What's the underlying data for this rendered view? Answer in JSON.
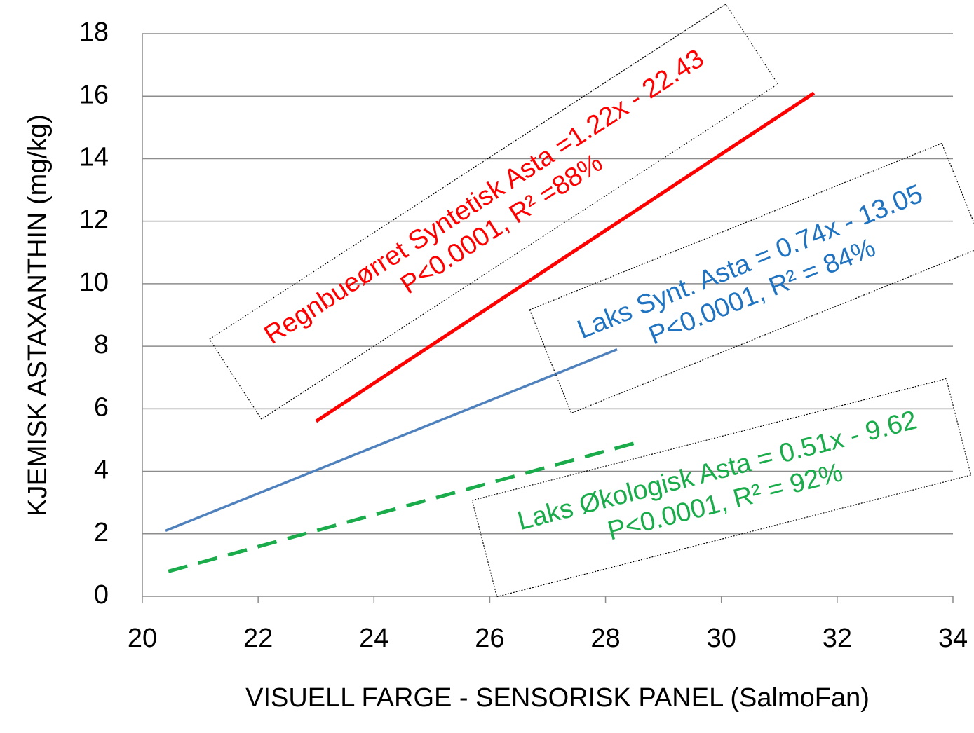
{
  "chart_data": {
    "type": "line",
    "xlabel": "VISUELL FARGE  - SENSORISK PANEL (SalmoFan)",
    "ylabel": "KJEMISK ASTAXANTHIN (mg/kg)",
    "xlim": [
      20,
      34
    ],
    "xticks": [
      20,
      22,
      24,
      26,
      28,
      30,
      32,
      34
    ],
    "ylim": [
      0,
      18
    ],
    "yticks": [
      0,
      2,
      4,
      6,
      8,
      10,
      12,
      14,
      16,
      18
    ],
    "grid": true,
    "series": [
      {
        "color": "#ff0000",
        "dashed": false,
        "x": [
          23,
          31.6
        ],
        "values": [
          5.6,
          16.1
        ]
      },
      {
        "color": "#4f81bd",
        "dashed": false,
        "x": [
          20.4,
          28.2
        ],
        "values": [
          2.1,
          7.9
        ]
      },
      {
        "color": "#1aab4b",
        "dashed": true,
        "x": [
          20.45,
          28.5
        ],
        "values": [
          0.8,
          4.9
        ]
      }
    ],
    "annotations": [
      {
        "color": "#ff0000",
        "lines": [
          "Regnbueørret Syntetisk  Asta =1.22x - 22.43",
          "P<0.0001, R² =88%"
        ]
      },
      {
        "color": "#1f73c0",
        "lines": [
          "Laks Synt. Asta = 0.74x - 13.05",
          "P<0.0001, R² = 84%"
        ]
      },
      {
        "color": "#1aab4b",
        "lines": [
          "Laks Økologisk Asta = 0.51x - 9.62",
          "P<0.0001, R² = 92%"
        ]
      }
    ]
  }
}
